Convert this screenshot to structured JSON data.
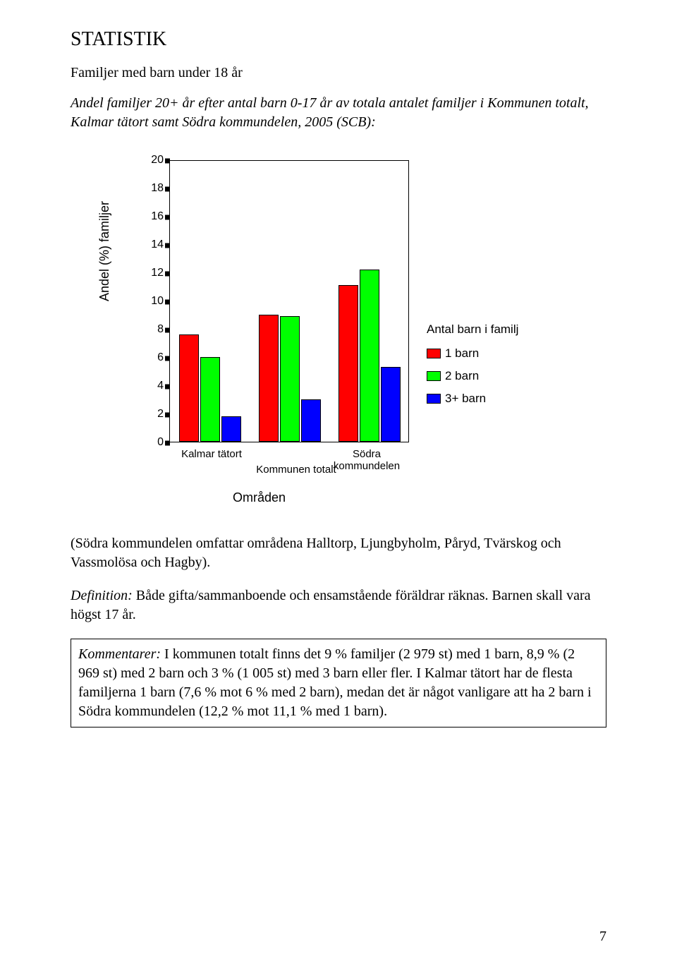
{
  "heading": "STATISTIK",
  "subtitle": "Familjer med barn under 18 år",
  "intro": "Andel familjer 20+ år efter antal barn 0-17 år av totala antalet familjer i Kommunen totalt, Kalmar tätort samt Södra kommundelen, 2005 (SCB):",
  "chart": {
    "type": "bar",
    "ylabel": "Andel (%) familjer",
    "xlabel": "Områden",
    "ylim": [
      0,
      20
    ],
    "ytick_step": 2,
    "yticks": [
      "20",
      "18",
      "16",
      "14",
      "12",
      "10",
      "8",
      "6",
      "4",
      "2",
      "0"
    ],
    "categories": [
      "Kalmar tätort",
      "Kommunen totalt",
      "Södra kommundelen"
    ],
    "series": [
      {
        "name": "1 barn",
        "color": "#ff0000",
        "values": [
          7.6,
          9.0,
          11.1
        ]
      },
      {
        "name": "2 barn",
        "color": "#00ff00",
        "values": [
          6.0,
          8.9,
          12.2
        ]
      },
      {
        "name": "3+ barn",
        "color": "#0000ff",
        "values": [
          1.8,
          3.0,
          5.3
        ]
      }
    ],
    "legend_title": "Antal barn i familj",
    "background_color": "#ffffff",
    "border_color": "#000000",
    "tick_font": "Arial",
    "tick_fontsize": 16
  },
  "para_below": "(Södra kommundelen omfattar områdena Halltorp, Ljungbyholm, Påryd, Tvärskog och Vassmolösa och Hagby).",
  "definition_label": "Definition:",
  "definition_text": " Både gifta/sammanboende och ensamstående föräldrar räknas. Barnen skall vara högst 17 år.",
  "comment_label": "Kommentarer:",
  "comment_text": " I kommunen totalt finns det 9 % familjer (2 979 st) med 1 barn, 8,9 % (2 969 st) med 2 barn och 3 % (1 005 st) med 3 barn eller fler. I Kalmar tätort har de flesta familjerna 1 barn (7,6 % mot 6 % med 2 barn), medan det är något vanligare att ha 2 barn i Södra kommundelen (12,2 % mot 11,1 % med 1 barn).",
  "page_number": "7"
}
